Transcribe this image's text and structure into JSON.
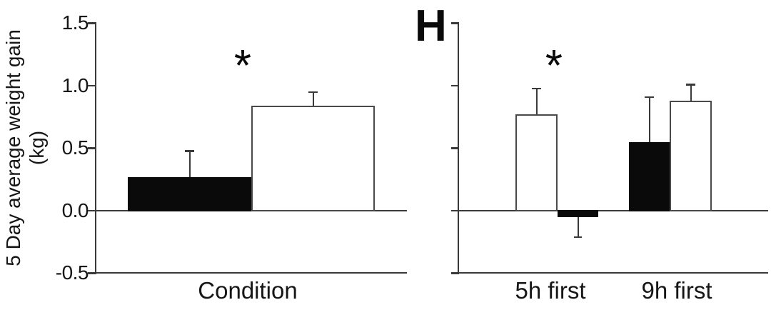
{
  "figure_type": "two-panel bar chart figure",
  "colors": {
    "background": "#ffffff",
    "axis_line": "#3a3a3a",
    "bar_outline": "#4a4a4a",
    "bar_fill_black": "#0a0a0a",
    "bar_fill_white": "#ffffff",
    "text": "#161616"
  },
  "chart_data": [
    {
      "type": "bar",
      "title": "",
      "xlabel": "",
      "ylabel": "5 Day average weight gain (kg)",
      "ylabel_lines": [
        "5 Day average weight gain",
        "(kg)"
      ],
      "categories": [
        "Condition"
      ],
      "yticks": [
        "1.5",
        "1.0",
        "0.5",
        "0.0",
        "-0.5"
      ],
      "ylim": [
        -0.5,
        1.5
      ],
      "grid": false,
      "legend": "none",
      "bars": [
        {
          "group": "Condition",
          "fill": "black",
          "value": 0.27,
          "error_up": 0.21
        },
        {
          "group": "Condition",
          "fill": "white",
          "value": 0.84,
          "error_up": 0.11
        }
      ],
      "annotations": [
        {
          "text": "*",
          "meaning": "significance marker above bars"
        }
      ]
    },
    {
      "type": "bar",
      "panel_label": "H",
      "title": "",
      "xlabel": "",
      "ylabel": "",
      "categories": [
        "5h first",
        "9h first"
      ],
      "yticks_labeled": false,
      "ylim": [
        -0.5,
        1.5
      ],
      "grid": false,
      "legend": "none",
      "bars": [
        {
          "group": "5h first",
          "fill": "white",
          "value": 0.77,
          "error_up": 0.21
        },
        {
          "group": "5h first",
          "fill": "black",
          "value": -0.05,
          "error_down": 0.16
        },
        {
          "group": "9h first",
          "fill": "black",
          "value": 0.55,
          "error_up": 0.36
        },
        {
          "group": "9h first",
          "fill": "white",
          "value": 0.88,
          "error_up": 0.13
        }
      ],
      "annotations": [
        {
          "text": "*",
          "meaning": "significance marker above 5h first white bar"
        }
      ]
    }
  ]
}
